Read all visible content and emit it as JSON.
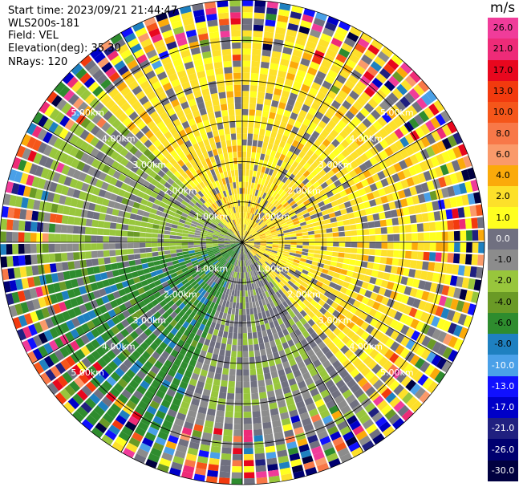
{
  "header": {
    "start_time": "Start time: 2023/09/21 21:44:47",
    "instrument": "WLS200s-181",
    "field": "Field: VEL",
    "elevation": "Elevation(deg): 35.30",
    "nrays": "NRays: 120"
  },
  "colorbar": {
    "unit": "m/s",
    "ticks": [
      "26.0",
      "21.0",
      "17.0",
      "13.0",
      "10.0",
      "8.0",
      "6.0",
      "4.0",
      "2.0",
      "1.0",
      "0.0",
      "-1.0",
      "-2.0",
      "-4.0",
      "-6.0",
      "-8.0",
      "-10.0",
      "-13.0",
      "-17.0",
      "-21.0",
      "-26.0",
      "-30.0"
    ],
    "colors": [
      "#f03c9a",
      "#ee2b78",
      "#e8071e",
      "#f23a0e",
      "#f5561a",
      "#f87848",
      "#fa9a6a",
      "#fbaa0a",
      "#fde02a",
      "#ffff20",
      "#707080",
      "#8c8c8c",
      "#98c63c",
      "#6a9a26",
      "#2e8c2e",
      "#1e80c0",
      "#4aa0e8",
      "#1010ff",
      "#0000c8",
      "#202080",
      "#000070",
      "#000040"
    ]
  },
  "chart_data": {
    "type": "heatmap",
    "projection": "polar PPI",
    "field": "VEL",
    "unit": "m/s",
    "nrays": 120,
    "elevation_deg": 35.3,
    "range_rings_km": [
      1,
      2,
      3,
      4,
      5,
      6
    ],
    "ring_labels": [
      "1.00km",
      "2.00km",
      "3.00km",
      "4.00km",
      "5.00km",
      "6.00km"
    ],
    "spokes_deg": [
      0,
      30,
      60,
      90,
      120,
      150,
      180,
      210,
      240,
      270,
      300,
      330
    ],
    "max_range_km": 6.0,
    "sectors": [
      {
        "from_az": 315,
        "to_az": 45,
        "dominant_velocity": 2.0
      },
      {
        "from_az": 45,
        "to_az": 140,
        "dominant_velocity": 2.0
      },
      {
        "from_az": 140,
        "to_az": 200,
        "dominant_velocity": -1.0
      },
      {
        "from_az": 200,
        "to_az": 260,
        "dominant_velocity": -6.0
      },
      {
        "from_az": 260,
        "to_az": 315,
        "dominant_velocity": -2.0
      }
    ]
  }
}
